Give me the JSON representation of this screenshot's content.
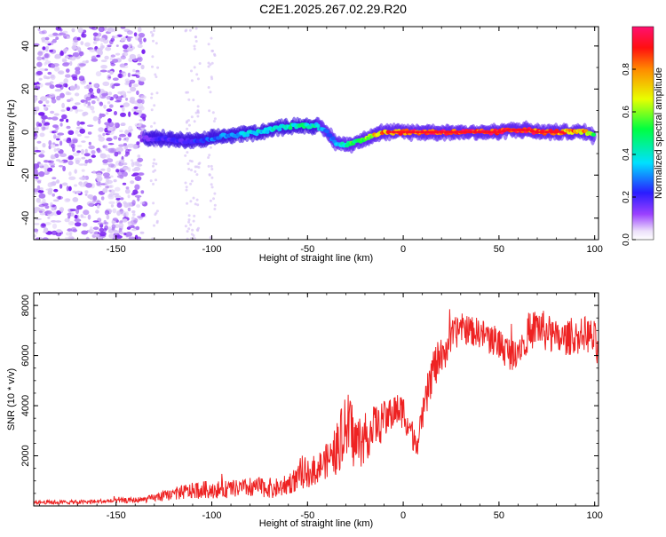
{
  "figure_title": "C2E1.2025.267.02.29.R20",
  "colors": {
    "snr_line": "#ee2222",
    "frame": "#000000",
    "noise": "#8a2be2",
    "background": "#ffffff"
  },
  "chart_data": [
    {
      "type": "heatmap",
      "title": "C2E1.2025.267.02.29.R20",
      "xlabel": "Height of straight line (km)",
      "ylabel": "Frequency (Hz)",
      "xlim": [
        -193,
        102
      ],
      "ylim": [
        -50,
        49
      ],
      "x_ticks": [
        -150,
        -100,
        -50,
        0,
        50,
        100
      ],
      "x_tick_labels": [
        "-150",
        "-100",
        "-50",
        "0",
        "50",
        "100"
      ],
      "y_ticks": [
        -40,
        -20,
        0,
        20,
        40
      ],
      "y_tick_labels": [
        "-40",
        "-20",
        "0",
        "20",
        "40"
      ],
      "colorbar": {
        "label": "Normalized spectral amplitude",
        "range": [
          0,
          1
        ],
        "ticks": [
          0.0,
          0.2,
          0.4,
          0.6,
          0.8
        ],
        "tick_labels": [
          "0.0",
          "0.2",
          "0.4",
          "0.6",
          "0.8"
        ],
        "colormap": "rainbow (white-violet-blue-cyan-green-yellow-red-magenta)"
      },
      "noise_region_x": [
        -193,
        -135
      ],
      "ridge": {
        "description": "Peak frequency track vs height",
        "x": [
          -135,
          -125,
          -115,
          -105,
          -95,
          -85,
          -75,
          -65,
          -55,
          -45,
          -40,
          -35,
          -30,
          -25,
          -20,
          -15,
          -10,
          -5,
          0,
          10,
          20,
          30,
          40,
          50,
          55,
          60,
          65,
          70,
          75,
          80,
          85,
          90,
          95,
          100
        ],
        "frequency": [
          -3,
          -3,
          -4,
          -4,
          -2,
          -1,
          0,
          2,
          3,
          3,
          0,
          -5,
          -6,
          -5,
          -3,
          -1,
          0,
          0,
          0,
          0,
          0,
          0,
          0,
          0,
          1,
          1,
          1,
          0,
          0,
          0,
          0,
          0,
          0,
          -2
        ],
        "amplitude": [
          0.15,
          0.2,
          0.2,
          0.25,
          0.3,
          0.35,
          0.4,
          0.4,
          0.45,
          0.4,
          0.25,
          0.35,
          0.45,
          0.55,
          0.6,
          0.7,
          0.8,
          0.85,
          0.85,
          0.9,
          0.95,
          0.95,
          0.95,
          0.95,
          0.9,
          0.95,
          0.95,
          0.9,
          0.85,
          0.85,
          0.8,
          0.8,
          0.75,
          0.55
        ]
      }
    },
    {
      "type": "line",
      "xlabel": "Height of straight line (km)",
      "ylabel": "SNR (10 * v/v)",
      "xlim": [
        -193,
        102
      ],
      "ylim": [
        0,
        8500
      ],
      "x_ticks": [
        -150,
        -100,
        -50,
        0,
        50,
        100
      ],
      "x_tick_labels": [
        "-150",
        "-100",
        "-50",
        "0",
        "50",
        "100"
      ],
      "y_ticks": [
        2000,
        4000,
        6000,
        8000
      ],
      "y_tick_labels": [
        "2000",
        "4000",
        "6000",
        "8000"
      ],
      "series": [
        {
          "name": "SNR",
          "x": [
            -193,
            -170,
            -150,
            -135,
            -125,
            -115,
            -105,
            -95,
            -85,
            -75,
            -65,
            -55,
            -45,
            -40,
            -35,
            -32,
            -28,
            -25,
            -20,
            -15,
            -10,
            -5,
            0,
            5,
            8,
            12,
            15,
            20,
            25,
            30,
            40,
            50,
            55,
            60,
            65,
            70,
            75,
            80,
            85,
            90,
            95,
            100,
            102
          ],
          "y": [
            150,
            150,
            200,
            250,
            400,
            550,
            650,
            650,
            700,
            750,
            700,
            1100,
            1500,
            1800,
            2200,
            2800,
            3200,
            2500,
            2700,
            3200,
            3400,
            3800,
            3800,
            2800,
            2600,
            4200,
            5400,
            5900,
            6700,
            7100,
            6900,
            6500,
            6100,
            6300,
            6800,
            7200,
            6900,
            6600,
            6700,
            6700,
            6900,
            6600,
            6000
          ],
          "noise_amplitude": [
            80,
            80,
            100,
            120,
            200,
            300,
            350,
            350,
            350,
            400,
            400,
            500,
            600,
            700,
            1000,
            1300,
            1400,
            1200,
            1000,
            900,
            800,
            700,
            700,
            600,
            600,
            800,
            900,
            800,
            700,
            600,
            600,
            700,
            700,
            700,
            700,
            800,
            800,
            700,
            700,
            700,
            700,
            800,
            800
          ]
        }
      ]
    }
  ]
}
